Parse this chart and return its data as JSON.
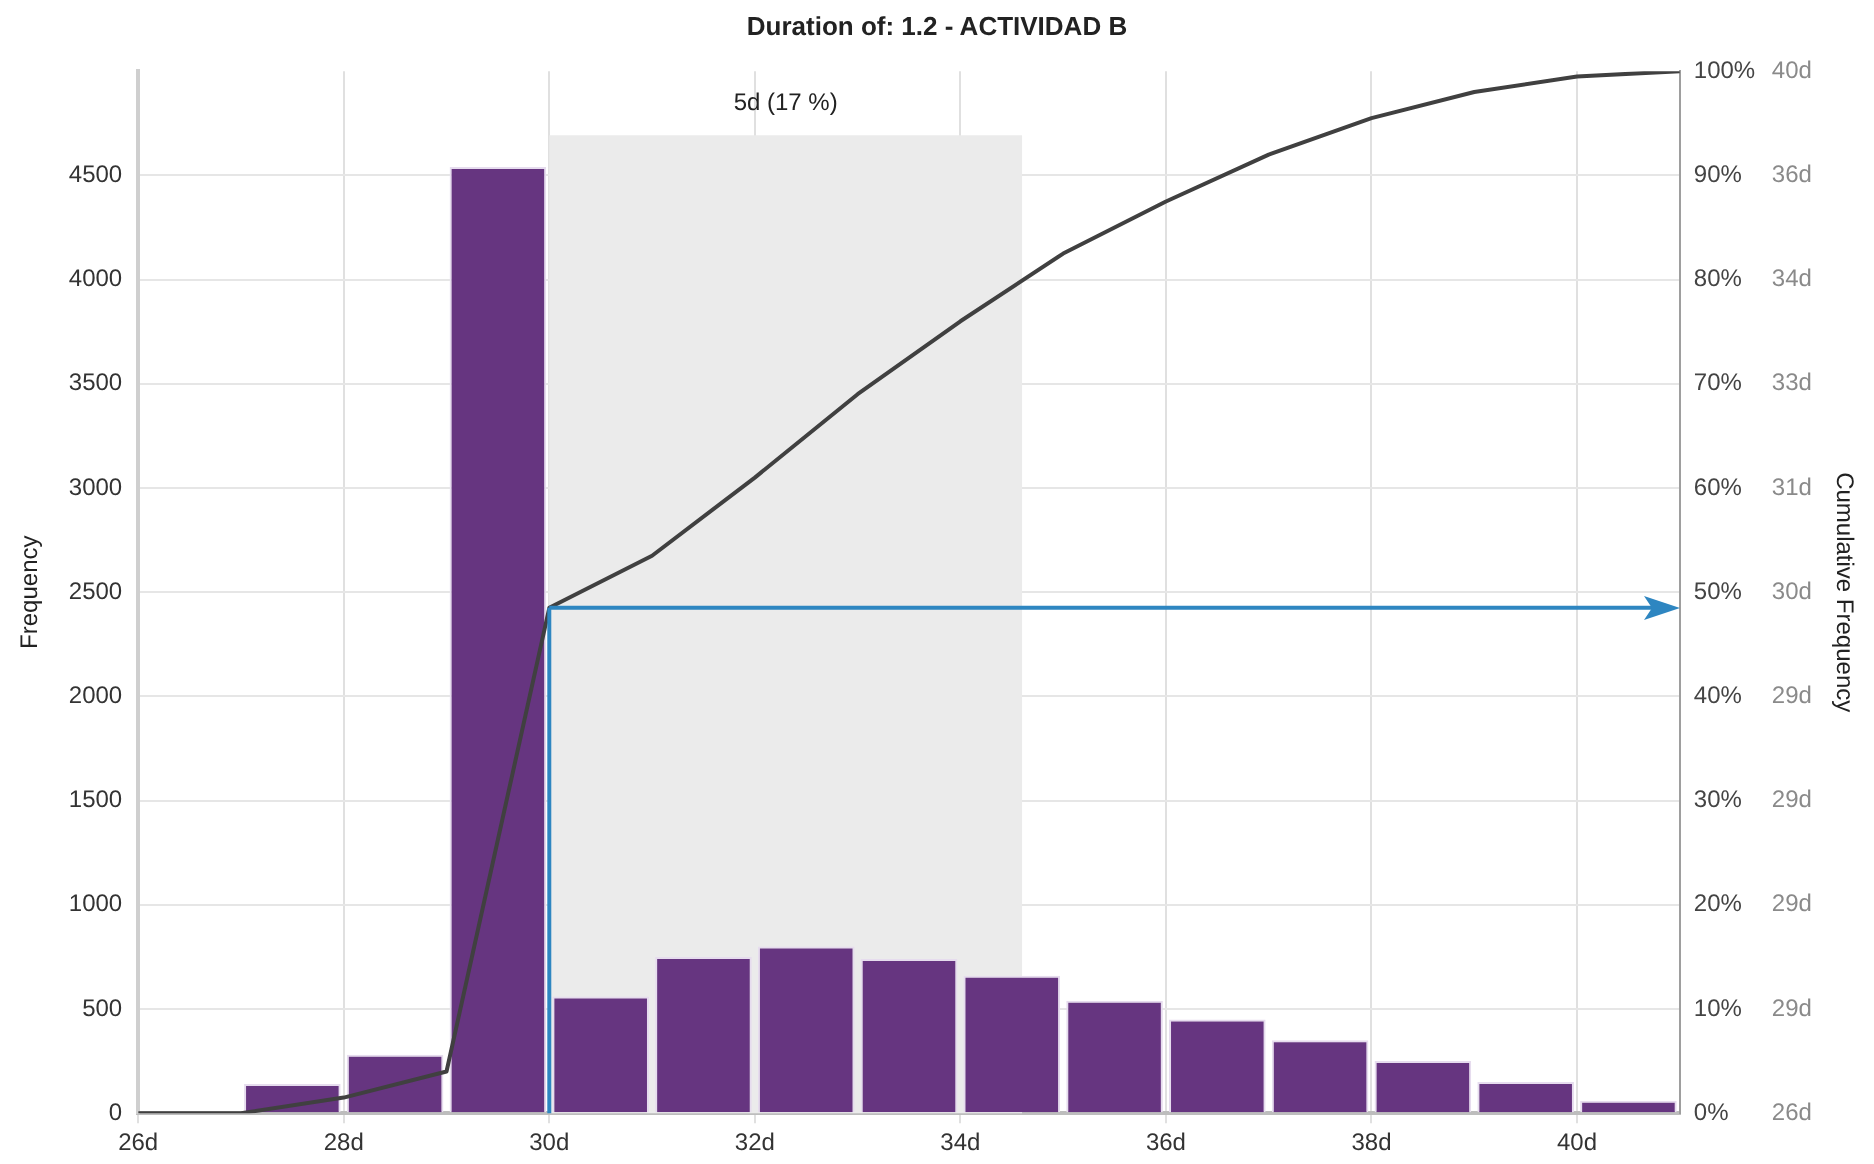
{
  "chart_data": {
    "type": "histogram",
    "title": "Duration of: 1.2 - ACTIVIDAD B",
    "ylabel": "Frequency",
    "y2label": "Cumulative Frequency",
    "bins": [
      26,
      27,
      28,
      29,
      30,
      31,
      32,
      33,
      34,
      35,
      36,
      37,
      38,
      39,
      40,
      41
    ],
    "xlim": [
      26,
      41
    ],
    "xticks": [
      {
        "value": 26,
        "label": "26d"
      },
      {
        "value": 28,
        "label": "28d"
      },
      {
        "value": 30,
        "label": "30d"
      },
      {
        "value": 32,
        "label": "32d"
      },
      {
        "value": 34,
        "label": "34d"
      },
      {
        "value": 36,
        "label": "36d"
      },
      {
        "value": 38,
        "label": "38d"
      },
      {
        "value": 40,
        "label": "40d"
      }
    ],
    "ylim": [
      0,
      5000
    ],
    "yticks": [
      0,
      500,
      1000,
      1500,
      2000,
      2500,
      3000,
      3500,
      4000,
      4500
    ],
    "y2lim": [
      0,
      100
    ],
    "y2ticks": [
      {
        "value": 0,
        "label": "0%"
      },
      {
        "value": 10,
        "label": "10%"
      },
      {
        "value": 20,
        "label": "20%"
      },
      {
        "value": 30,
        "label": "30%"
      },
      {
        "value": 40,
        "label": "40%"
      },
      {
        "value": 50,
        "label": "50%"
      },
      {
        "value": 60,
        "label": "60%"
      },
      {
        "value": 70,
        "label": "70%"
      },
      {
        "value": 80,
        "label": "80%"
      },
      {
        "value": 90,
        "label": "90%"
      },
      {
        "value": 100,
        "label": "100%"
      }
    ],
    "annotations": [
      "26d",
      "29d",
      "29d",
      "29d",
      "29d",
      "30d",
      "31d",
      "33d",
      "34d",
      "36d",
      "40d"
    ],
    "series": [
      {
        "color": "#663580",
        "values": [
          0,
          140,
          280,
          4540,
          560,
          750,
          800,
          740,
          660,
          540,
          450,
          350,
          250,
          150,
          60
        ]
      },
      {
        "type": "line",
        "axis": "y2",
        "color": "#404040",
        "x": [
          26,
          27,
          28,
          29,
          30,
          31,
          32,
          33,
          34,
          35,
          36,
          37,
          38,
          39,
          40,
          41
        ],
        "values": [
          0,
          0,
          1.5,
          4,
          48.5,
          53.5,
          61,
          69,
          76,
          82.5,
          87.5,
          92,
          95.5,
          98,
          99.5,
          100
        ]
      }
    ],
    "bands": [
      {
        "axis": "x",
        "from": 30,
        "to": 34.6,
        "label": "5d (17 %)",
        "color": "#ebebeb"
      }
    ],
    "ref_lines": [
      {
        "axis": "x",
        "value": 30,
        "color": "#2e86c1"
      },
      {
        "axis": "y2",
        "value": 48.5,
        "color": "#2e86c1"
      }
    ],
    "marker": "none",
    "grid": true,
    "legend": false
  }
}
